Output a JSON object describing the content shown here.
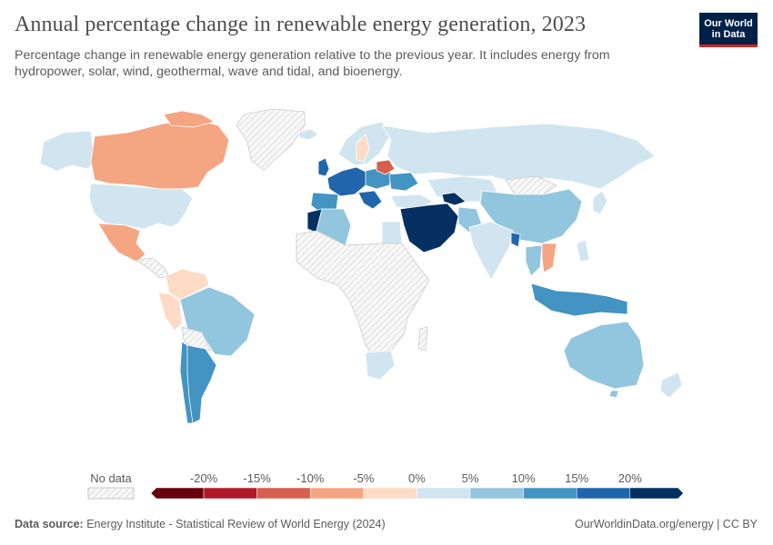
{
  "header": {
    "title": "Annual percentage change in renewable energy generation, 2023",
    "subtitle": "Percentage change in renewable energy generation relative to the previous year. It includes energy from hydropower, solar, wind, geothermal, wave and tidal, and bioenergy."
  },
  "logo": {
    "line1": "Our World",
    "line2": "in Data"
  },
  "legend": {
    "no_data_label": "No data",
    "ticks": [
      "-20%",
      "-15%",
      "-10%",
      "-5%",
      "0%",
      "5%",
      "10%",
      "15%",
      "20%"
    ],
    "bins": [
      "#67000d",
      "#b2182b",
      "#d6604d",
      "#f4a582",
      "#fddbc7",
      "#d1e5f0",
      "#92c5de",
      "#4393c3",
      "#2166ac",
      "#053061"
    ]
  },
  "colors": {
    "no_data_fill": "#f4f4f4",
    "border": "#ffffff"
  },
  "footer": {
    "source_label": "Data source:",
    "source_text": "Energy Institute - Statistical Review of World Energy (2024)",
    "url": "OurWorldinData.org/energy | CC BY"
  }
}
